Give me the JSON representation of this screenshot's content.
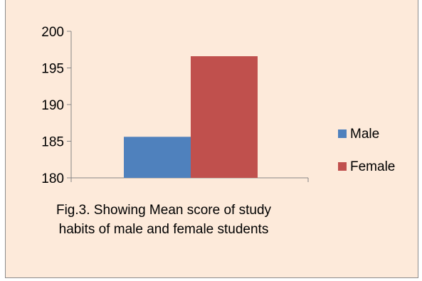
{
  "chart_data": {
    "type": "bar",
    "categories": [
      ""
    ],
    "series": [
      {
        "name": "Male",
        "values": [
          185.6
        ],
        "color": "#4f81bd"
      },
      {
        "name": "Female",
        "values": [
          196.6
        ],
        "color": "#c0504d"
      }
    ],
    "ylim": [
      180,
      200
    ],
    "yticks": [
      180,
      185,
      190,
      195,
      200
    ],
    "grid": false,
    "legend_position": "right",
    "caption": "Fig.3. Showing Mean score of study habits of male and female students"
  },
  "colors": {
    "background": "#fdeada",
    "axis": "#868686"
  }
}
